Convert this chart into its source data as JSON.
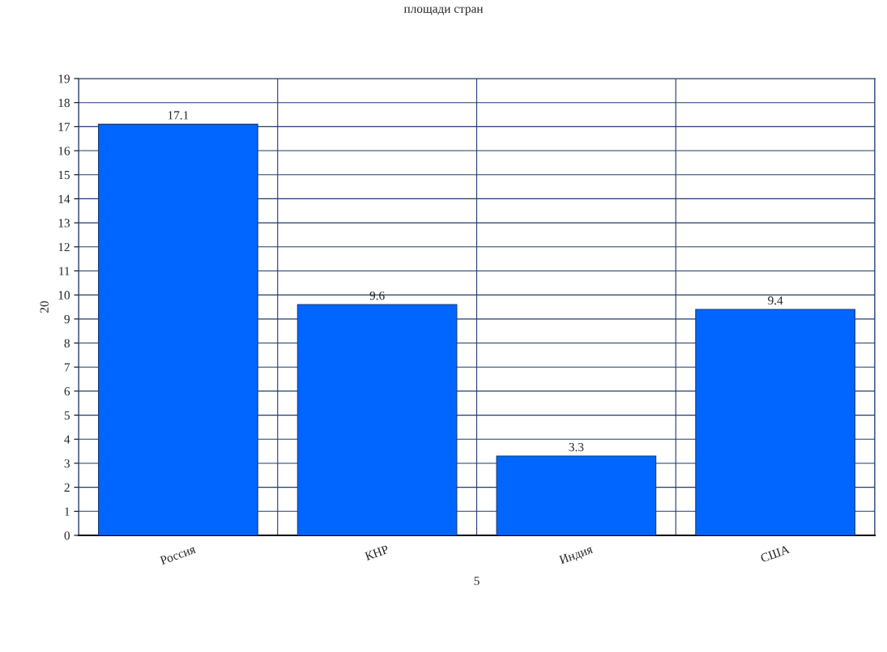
{
  "chart_data": {
    "type": "bar",
    "title": "площади стран",
    "xlabel": "5",
    "ylabel": "20",
    "categories": [
      "Россия",
      "КНР",
      "Индия",
      "США"
    ],
    "values": [
      17.1,
      9.6,
      3.3,
      9.4
    ],
    "color": "#0066ff",
    "ylim": [
      0,
      19
    ],
    "yticks": [
      0,
      1,
      2,
      3,
      4,
      5,
      6,
      7,
      8,
      9,
      10,
      11,
      12,
      13,
      14,
      15,
      16,
      17,
      18,
      19
    ],
    "grid": true,
    "data_labels": true
  }
}
